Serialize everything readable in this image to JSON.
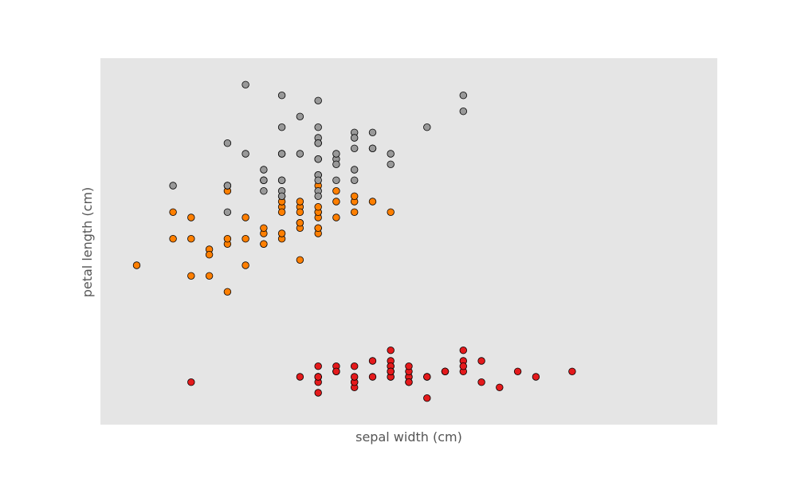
{
  "chart_data": {
    "type": "scatter",
    "title": "",
    "xlabel": "sepal width (cm)",
    "ylabel": "petal length (cm)",
    "xlim": [
      1.8,
      5.2
    ],
    "ylim": [
      0.5,
      7.4
    ],
    "grid": false,
    "ticks_visible": false,
    "colors": {
      "background": "#e5e5e5",
      "edge": "#000000"
    },
    "series": [
      {
        "color": "#e41a1c",
        "points": [
          [
            3.5,
            1.4
          ],
          [
            3.0,
            1.4
          ],
          [
            3.2,
            1.3
          ],
          [
            3.1,
            1.5
          ],
          [
            3.6,
            1.4
          ],
          [
            3.9,
            1.7
          ],
          [
            3.4,
            1.4
          ],
          [
            3.4,
            1.5
          ],
          [
            2.9,
            1.4
          ],
          [
            3.1,
            1.5
          ],
          [
            3.7,
            1.5
          ],
          [
            3.4,
            1.6
          ],
          [
            3.0,
            1.4
          ],
          [
            3.0,
            1.1
          ],
          [
            4.0,
            1.2
          ],
          [
            4.4,
            1.5
          ],
          [
            3.9,
            1.3
          ],
          [
            3.5,
            1.4
          ],
          [
            3.8,
            1.7
          ],
          [
            3.8,
            1.5
          ],
          [
            3.4,
            1.7
          ],
          [
            3.7,
            1.5
          ],
          [
            3.6,
            1.0
          ],
          [
            3.3,
            1.7
          ],
          [
            3.4,
            1.9
          ],
          [
            3.0,
            1.6
          ],
          [
            3.4,
            1.6
          ],
          [
            3.5,
            1.5
          ],
          [
            3.4,
            1.4
          ],
          [
            3.2,
            1.6
          ],
          [
            3.1,
            1.6
          ],
          [
            3.4,
            1.5
          ],
          [
            4.1,
            1.5
          ],
          [
            4.2,
            1.4
          ],
          [
            3.1,
            1.5
          ],
          [
            3.2,
            1.2
          ],
          [
            3.5,
            1.3
          ],
          [
            3.6,
            1.4
          ],
          [
            3.0,
            1.3
          ],
          [
            3.4,
            1.5
          ],
          [
            3.5,
            1.3
          ],
          [
            2.3,
            1.3
          ],
          [
            3.2,
            1.3
          ],
          [
            3.5,
            1.6
          ],
          [
            3.8,
            1.9
          ],
          [
            3.0,
            1.4
          ],
          [
            3.8,
            1.6
          ],
          [
            3.2,
            1.4
          ],
          [
            3.7,
            1.5
          ],
          [
            3.3,
            1.4
          ]
        ]
      },
      {
        "color": "#ff7f00",
        "points": [
          [
            3.2,
            4.7
          ],
          [
            3.2,
            4.5
          ],
          [
            3.1,
            4.9
          ],
          [
            2.3,
            4.0
          ],
          [
            2.8,
            4.6
          ],
          [
            2.8,
            4.5
          ],
          [
            3.3,
            4.7
          ],
          [
            2.4,
            3.3
          ],
          [
            2.9,
            4.6
          ],
          [
            2.7,
            3.9
          ],
          [
            2.0,
            3.5
          ],
          [
            3.0,
            4.2
          ],
          [
            2.2,
            4.0
          ],
          [
            2.9,
            4.7
          ],
          [
            2.9,
            3.6
          ],
          [
            3.1,
            4.4
          ],
          [
            3.0,
            4.5
          ],
          [
            2.7,
            4.1
          ],
          [
            2.2,
            4.5
          ],
          [
            2.5,
            3.9
          ],
          [
            3.2,
            4.8
          ],
          [
            2.8,
            4.0
          ],
          [
            2.5,
            4.9
          ],
          [
            2.8,
            4.7
          ],
          [
            2.9,
            4.3
          ],
          [
            3.0,
            4.4
          ],
          [
            2.8,
            4.8
          ],
          [
            3.0,
            5.0
          ],
          [
            2.9,
            4.5
          ],
          [
            2.6,
            3.5
          ],
          [
            2.4,
            3.8
          ],
          [
            2.4,
            3.7
          ],
          [
            2.7,
            3.9
          ],
          [
            2.7,
            5.1
          ],
          [
            3.0,
            4.5
          ],
          [
            3.4,
            4.5
          ],
          [
            3.1,
            4.7
          ],
          [
            2.3,
            4.4
          ],
          [
            3.0,
            4.1
          ],
          [
            2.5,
            4.0
          ],
          [
            2.6,
            4.4
          ],
          [
            3.0,
            4.6
          ],
          [
            2.6,
            4.0
          ],
          [
            2.3,
            3.3
          ],
          [
            2.7,
            4.2
          ],
          [
            3.0,
            4.2
          ],
          [
            2.9,
            4.2
          ],
          [
            2.9,
            4.3
          ],
          [
            2.5,
            3.0
          ],
          [
            2.8,
            4.1
          ]
        ]
      },
      {
        "color": "#999999",
        "points": [
          [
            3.3,
            6.0
          ],
          [
            2.7,
            5.1
          ],
          [
            3.0,
            5.9
          ],
          [
            2.9,
            5.6
          ],
          [
            3.0,
            5.8
          ],
          [
            3.0,
            6.6
          ],
          [
            2.5,
            4.5
          ],
          [
            2.9,
            6.3
          ],
          [
            2.5,
            5.8
          ],
          [
            3.6,
            6.1
          ],
          [
            3.2,
            5.1
          ],
          [
            2.7,
            5.3
          ],
          [
            3.0,
            5.5
          ],
          [
            2.5,
            5.0
          ],
          [
            2.8,
            5.1
          ],
          [
            3.2,
            5.3
          ],
          [
            3.0,
            5.5
          ],
          [
            3.8,
            6.7
          ],
          [
            2.6,
            6.9
          ],
          [
            2.2,
            5.0
          ],
          [
            3.2,
            5.7
          ],
          [
            2.8,
            4.9
          ],
          [
            2.8,
            6.7
          ],
          [
            2.7,
            4.9
          ],
          [
            3.3,
            5.7
          ],
          [
            3.2,
            6.0
          ],
          [
            2.8,
            4.8
          ],
          [
            3.0,
            4.9
          ],
          [
            2.8,
            5.6
          ],
          [
            3.0,
            5.8
          ],
          [
            2.8,
            6.1
          ],
          [
            3.8,
            6.4
          ],
          [
            2.8,
            5.6
          ],
          [
            2.8,
            5.1
          ],
          [
            2.6,
            5.6
          ],
          [
            3.0,
            6.1
          ],
          [
            3.4,
            5.6
          ],
          [
            3.1,
            5.5
          ],
          [
            3.0,
            4.8
          ],
          [
            3.1,
            5.4
          ],
          [
            3.1,
            5.6
          ],
          [
            3.1,
            5.1
          ],
          [
            2.7,
            5.1
          ],
          [
            3.2,
            5.9
          ],
          [
            3.3,
            5.7
          ],
          [
            3.0,
            5.2
          ],
          [
            2.5,
            5.0
          ],
          [
            3.0,
            5.2
          ],
          [
            3.4,
            5.4
          ],
          [
            3.0,
            5.1
          ]
        ]
      }
    ]
  }
}
